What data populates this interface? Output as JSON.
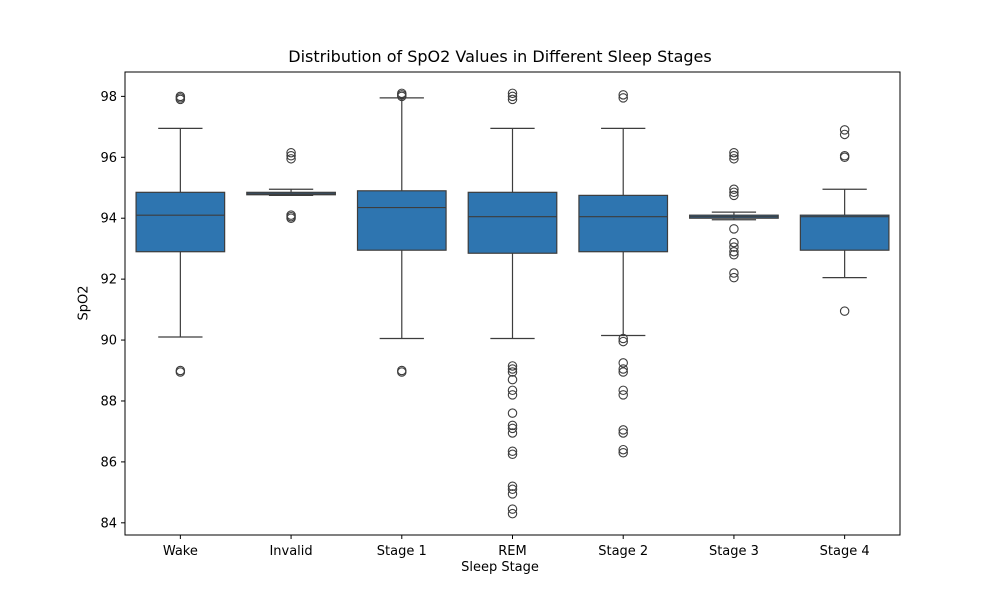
{
  "chart_data": {
    "type": "box",
    "title": "Distribution of SpO2 Values in Different Sleep Stages",
    "xlabel": "Sleep Stage",
    "ylabel": "SpO2",
    "ylim": [
      83.6,
      98.8
    ],
    "yticks": [
      84,
      86,
      88,
      90,
      92,
      94,
      96,
      98
    ],
    "color": "#2e75b0",
    "edge_color": "#3d3d3d",
    "categories": [
      "Wake",
      "Invalid",
      "Stage 1",
      "REM",
      "Stage 2",
      "Stage 3",
      "Stage 4"
    ],
    "boxes": [
      {
        "category": "Wake",
        "whisker_low": 90.1,
        "q1": 92.9,
        "median": 94.1,
        "q3": 94.85,
        "whisker_high": 96.95,
        "outliers": [
          89.0,
          88.95,
          97.95,
          98.0,
          97.9
        ]
      },
      {
        "category": "Invalid",
        "whisker_low": 94.75,
        "q1": 94.77,
        "median": 94.8,
        "q3": 94.85,
        "whisker_high": 94.95,
        "outliers": [
          94.05,
          94.1,
          94.0,
          95.95,
          96.05,
          96.15
        ]
      },
      {
        "category": "Stage 1",
        "whisker_low": 90.05,
        "q1": 92.95,
        "median": 94.35,
        "q3": 94.9,
        "whisker_high": 97.95,
        "outliers": [
          89.0,
          88.95,
          98.0,
          98.05,
          98.1
        ]
      },
      {
        "category": "REM",
        "whisker_low": 90.05,
        "q1": 92.85,
        "median": 94.05,
        "q3": 94.85,
        "whisker_high": 96.95,
        "outliers": [
          84.3,
          84.45,
          84.95,
          85.1,
          85.2,
          86.25,
          86.35,
          86.95,
          87.1,
          87.2,
          87.6,
          88.2,
          88.35,
          88.7,
          88.95,
          89.05,
          89.15,
          97.9,
          98.0,
          98.1
        ]
      },
      {
        "category": "Stage 2",
        "whisker_low": 90.15,
        "q1": 92.9,
        "median": 94.05,
        "q3": 94.75,
        "whisker_high": 96.95,
        "outliers": [
          86.3,
          86.4,
          86.95,
          87.05,
          88.2,
          88.35,
          88.95,
          89.05,
          89.25,
          89.95,
          90.05,
          97.95,
          98.05
        ]
      },
      {
        "category": "Stage 3",
        "whisker_low": 93.95,
        "q1": 94.0,
        "median": 94.05,
        "q3": 94.1,
        "whisker_high": 94.2,
        "outliers": [
          92.05,
          92.2,
          92.8,
          92.9,
          93.05,
          93.2,
          93.65,
          94.75,
          94.85,
          94.95,
          95.95,
          96.05,
          96.15
        ]
      },
      {
        "category": "Stage 4",
        "whisker_low": 92.05,
        "q1": 92.95,
        "median": 94.05,
        "q3": 94.1,
        "whisker_high": 94.95,
        "outliers": [
          90.95,
          96.0,
          96.05,
          96.75,
          96.9
        ]
      }
    ]
  }
}
